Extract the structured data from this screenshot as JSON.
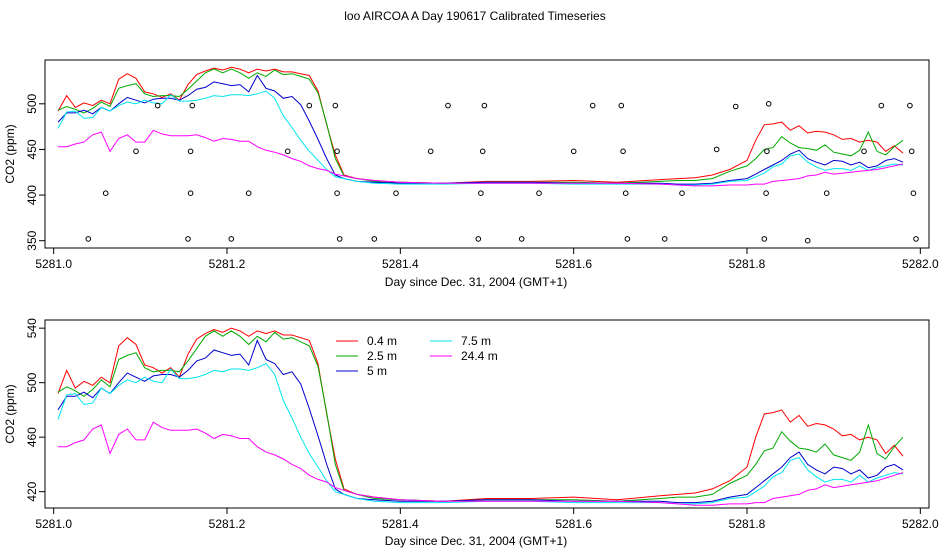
{
  "title": "loo AIRCOA A  Day 190617  Calibrated Timeseries",
  "colors": {
    "axis": "#000000",
    "s0": "#ff0000",
    "s1": "#00aa00",
    "s2": "#0000cc",
    "s3": "#00e5ee",
    "s4": "#ff00ff"
  },
  "chart_data": [
    {
      "type": "scatter",
      "xlabel": "Day since Dec. 31, 2004 (GMT+1)",
      "ylabel": "CO2 (ppm)",
      "xlim": [
        5280.99,
        5282.01
      ],
      "ylim": [
        342,
        548
      ],
      "xticks": [
        "5281.0",
        "5281.2",
        "5281.4",
        "5281.6",
        "5281.8",
        "5282.0"
      ],
      "yticks": [
        "350",
        "400",
        "450",
        "500"
      ],
      "series_colors": [
        "s0",
        "s1",
        "s2",
        "s3",
        "s4"
      ],
      "line_series_from_panel_2": true,
      "points": [
        [
          5281.04,
          352
        ],
        [
          5281.06,
          402
        ],
        [
          5281.095,
          448
        ],
        [
          5281.12,
          498
        ],
        [
          5281.155,
          352
        ],
        [
          5281.158,
          402
        ],
        [
          5281.158,
          448
        ],
        [
          5281.16,
          498
        ],
        [
          5281.205,
          352
        ],
        [
          5281.225,
          402
        ],
        [
          5281.27,
          448
        ],
        [
          5281.295,
          498
        ],
        [
          5281.325,
          498
        ],
        [
          5281.327,
          448
        ],
        [
          5281.327,
          402
        ],
        [
          5281.33,
          352
        ],
        [
          5281.37,
          352
        ],
        [
          5281.395,
          402
        ],
        [
          5281.435,
          448
        ],
        [
          5281.455,
          498
        ],
        [
          5281.49,
          352
        ],
        [
          5281.493,
          402
        ],
        [
          5281.495,
          448
        ],
        [
          5281.497,
          498
        ],
        [
          5281.54,
          352
        ],
        [
          5281.56,
          402
        ],
        [
          5281.6,
          448
        ],
        [
          5281.622,
          498
        ],
        [
          5281.655,
          498
        ],
        [
          5281.657,
          448
        ],
        [
          5281.66,
          402
        ],
        [
          5281.662,
          352
        ],
        [
          5281.705,
          352
        ],
        [
          5281.725,
          402
        ],
        [
          5281.765,
          450
        ],
        [
          5281.787,
          497
        ],
        [
          5281.82,
          352
        ],
        [
          5281.822,
          402
        ],
        [
          5281.823,
          448
        ],
        [
          5281.825,
          500
        ],
        [
          5281.87,
          350
        ],
        [
          5281.892,
          402
        ],
        [
          5281.935,
          448
        ],
        [
          5281.955,
          498
        ],
        [
          5281.988,
          498
        ],
        [
          5281.99,
          448
        ],
        [
          5281.992,
          402
        ],
        [
          5281.995,
          352
        ]
      ]
    },
    {
      "type": "line",
      "xlabel": "Day since Dec. 31, 2004 (GMT+1)",
      "ylabel": "CO2 (ppm)",
      "xlim": [
        5280.99,
        5282.01
      ],
      "ylim": [
        408,
        546
      ],
      "xticks": [
        "5281.0",
        "5281.2",
        "5281.4",
        "5281.6",
        "5281.8",
        "5282.0"
      ],
      "yticks": [
        "420",
        "460",
        "500",
        "540"
      ],
      "legend": [
        "0.4 m",
        "2.5 m",
        "5 m",
        "7.5 m",
        "24.4 m"
      ],
      "series": [
        {
          "name": "0.4 m",
          "color": "s0",
          "x": [
            5281.005,
            5281.015,
            5281.025,
            5281.035,
            5281.045,
            5281.055,
            5281.065,
            5281.075,
            5281.085,
            5281.095,
            5281.105,
            5281.115,
            5281.125,
            5281.135,
            5281.145,
            5281.155,
            5281.165,
            5281.175,
            5281.185,
            5281.195,
            5281.205,
            5281.215,
            5281.225,
            5281.235,
            5281.245,
            5281.255,
            5281.265,
            5281.275,
            5281.285,
            5281.295,
            5281.305,
            5281.315,
            5281.325,
            5281.335,
            5281.35,
            5281.37,
            5281.4,
            5281.45,
            5281.5,
            5281.55,
            5281.6,
            5281.65,
            5281.7,
            5281.72,
            5281.74,
            5281.76,
            5281.78,
            5281.8,
            5281.81,
            5281.82,
            5281.83,
            5281.84,
            5281.85,
            5281.86,
            5281.87,
            5281.88,
            5281.89,
            5281.9,
            5281.91,
            5281.92,
            5281.93,
            5281.94,
            5281.95,
            5281.96,
            5281.97,
            5281.98
          ],
          "y": [
            492,
            509,
            496,
            501,
            498,
            504,
            500,
            527,
            533,
            528,
            513,
            511,
            507,
            511,
            504,
            521,
            532,
            536,
            539,
            537,
            540,
            538,
            534,
            538,
            536,
            538,
            535,
            535,
            533,
            531,
            514,
            477,
            444,
            422,
            418,
            416,
            414,
            413,
            415,
            415,
            416,
            414,
            417,
            418,
            419,
            422,
            428,
            438,
            460,
            477,
            478,
            480,
            471,
            476,
            468,
            470,
            469,
            466,
            461,
            462,
            458,
            460,
            458,
            448,
            454,
            446
          ]
        },
        {
          "name": "2.5 m",
          "color": "s1",
          "x": [
            5281.005,
            5281.015,
            5281.025,
            5281.035,
            5281.045,
            5281.055,
            5281.065,
            5281.075,
            5281.085,
            5281.095,
            5281.105,
            5281.115,
            5281.125,
            5281.135,
            5281.145,
            5281.155,
            5281.165,
            5281.175,
            5281.185,
            5281.195,
            5281.205,
            5281.215,
            5281.225,
            5281.235,
            5281.245,
            5281.255,
            5281.265,
            5281.275,
            5281.285,
            5281.295,
            5281.305,
            5281.315,
            5281.325,
            5281.335,
            5281.35,
            5281.37,
            5281.4,
            5281.45,
            5281.5,
            5281.55,
            5281.6,
            5281.65,
            5281.7,
            5281.72,
            5281.74,
            5281.76,
            5281.78,
            5281.8,
            5281.81,
            5281.82,
            5281.83,
            5281.84,
            5281.85,
            5281.86,
            5281.87,
            5281.88,
            5281.89,
            5281.9,
            5281.91,
            5281.92,
            5281.93,
            5281.94,
            5281.95,
            5281.96,
            5281.97,
            5281.98
          ],
          "y": [
            493,
            497,
            494,
            490,
            495,
            502,
            497,
            517,
            520,
            522,
            511,
            508,
            509,
            509,
            508,
            516,
            525,
            534,
            538,
            534,
            538,
            534,
            528,
            534,
            530,
            537,
            532,
            533,
            530,
            527,
            512,
            478,
            440,
            421,
            418,
            415,
            414,
            413,
            414,
            414,
            414,
            413,
            415,
            416,
            416,
            418,
            426,
            432,
            440,
            450,
            452,
            464,
            457,
            452,
            451,
            449,
            455,
            447,
            445,
            443,
            449,
            469,
            448,
            444,
            453,
            460
          ]
        },
        {
          "name": "5 m",
          "color": "s2",
          "x": [
            5281.005,
            5281.015,
            5281.025,
            5281.035,
            5281.045,
            5281.055,
            5281.065,
            5281.075,
            5281.085,
            5281.095,
            5281.105,
            5281.115,
            5281.125,
            5281.135,
            5281.145,
            5281.155,
            5281.165,
            5281.175,
            5281.185,
            5281.195,
            5281.205,
            5281.215,
            5281.225,
            5281.235,
            5281.245,
            5281.255,
            5281.265,
            5281.275,
            5281.285,
            5281.295,
            5281.305,
            5281.315,
            5281.325,
            5281.335,
            5281.35,
            5281.37,
            5281.4,
            5281.45,
            5281.5,
            5281.55,
            5281.6,
            5281.65,
            5281.7,
            5281.72,
            5281.74,
            5281.76,
            5281.78,
            5281.8,
            5281.81,
            5281.82,
            5281.83,
            5281.84,
            5281.85,
            5281.86,
            5281.87,
            5281.88,
            5281.89,
            5281.9,
            5281.91,
            5281.92,
            5281.93,
            5281.94,
            5281.95,
            5281.96,
            5281.97,
            5281.98
          ],
          "y": [
            480,
            490,
            490,
            493,
            489,
            496,
            492,
            500,
            507,
            504,
            501,
            505,
            506,
            506,
            504,
            509,
            516,
            518,
            524,
            522,
            520,
            521,
            513,
            531,
            517,
            514,
            506,
            508,
            499,
            481,
            461,
            440,
            422,
            418,
            415,
            414,
            413,
            413,
            414,
            414,
            413,
            413,
            413,
            412,
            412,
            413,
            416,
            418,
            423,
            428,
            433,
            438,
            445,
            449,
            440,
            436,
            433,
            438,
            437,
            433,
            436,
            430,
            432,
            438,
            440,
            436
          ]
        },
        {
          "name": "7.5 m",
          "color": "s3",
          "x": [
            5281.005,
            5281.015,
            5281.025,
            5281.035,
            5281.045,
            5281.055,
            5281.065,
            5281.075,
            5281.085,
            5281.095,
            5281.105,
            5281.115,
            5281.125,
            5281.135,
            5281.145,
            5281.155,
            5281.165,
            5281.175,
            5281.185,
            5281.195,
            5281.205,
            5281.215,
            5281.225,
            5281.235,
            5281.245,
            5281.255,
            5281.265,
            5281.275,
            5281.285,
            5281.295,
            5281.305,
            5281.315,
            5281.325,
            5281.335,
            5281.35,
            5281.37,
            5281.4,
            5281.45,
            5281.5,
            5281.55,
            5281.6,
            5281.65,
            5281.7,
            5281.72,
            5281.74,
            5281.76,
            5281.78,
            5281.8,
            5281.81,
            5281.82,
            5281.83,
            5281.84,
            5281.85,
            5281.86,
            5281.87,
            5281.88,
            5281.89,
            5281.9,
            5281.91,
            5281.92,
            5281.93,
            5281.94,
            5281.95,
            5281.96,
            5281.97,
            5281.98
          ],
          "y": [
            473,
            491,
            492,
            484,
            485,
            496,
            492,
            498,
            502,
            500,
            504,
            501,
            500,
            510,
            503,
            503,
            504,
            506,
            509,
            508,
            510,
            510,
            509,
            511,
            514,
            506,
            487,
            474,
            460,
            448,
            438,
            428,
            420,
            418,
            415,
            413,
            412,
            412,
            413,
            413,
            412,
            412,
            412,
            411,
            411,
            412,
            415,
            416,
            420,
            424,
            431,
            434,
            443,
            445,
            436,
            431,
            427,
            429,
            429,
            427,
            432,
            427,
            430,
            432,
            434,
            433
          ]
        },
        {
          "name": "24.4 m",
          "color": "s4",
          "x": [
            5281.005,
            5281.015,
            5281.025,
            5281.035,
            5281.045,
            5281.055,
            5281.065,
            5281.075,
            5281.085,
            5281.095,
            5281.105,
            5281.115,
            5281.125,
            5281.135,
            5281.145,
            5281.155,
            5281.165,
            5281.175,
            5281.185,
            5281.195,
            5281.205,
            5281.215,
            5281.225,
            5281.235,
            5281.245,
            5281.255,
            5281.265,
            5281.275,
            5281.285,
            5281.295,
            5281.305,
            5281.315,
            5281.325,
            5281.335,
            5281.35,
            5281.37,
            5281.4,
            5281.45,
            5281.5,
            5281.55,
            5281.6,
            5281.65,
            5281.7,
            5281.72,
            5281.74,
            5281.76,
            5281.78,
            5281.8,
            5281.81,
            5281.82,
            5281.83,
            5281.84,
            5281.85,
            5281.86,
            5281.87,
            5281.88,
            5281.89,
            5281.9,
            5281.91,
            5281.92,
            5281.93,
            5281.94,
            5281.95,
            5281.96,
            5281.97,
            5281.98
          ],
          "y": [
            453,
            453,
            456,
            458,
            466,
            469,
            448,
            462,
            466,
            458,
            458,
            471,
            467,
            465,
            465,
            465,
            466,
            463,
            459,
            462,
            461,
            459,
            459,
            453,
            449,
            447,
            444,
            440,
            437,
            432,
            429,
            427,
            423,
            421,
            418,
            416,
            414,
            413,
            413,
            413,
            413,
            413,
            412,
            411,
            410,
            410,
            411,
            411,
            412,
            412,
            415,
            416,
            417,
            418,
            421,
            422,
            425,
            423,
            424,
            425,
            426,
            427,
            428,
            430,
            432,
            434
          ]
        }
      ]
    }
  ]
}
